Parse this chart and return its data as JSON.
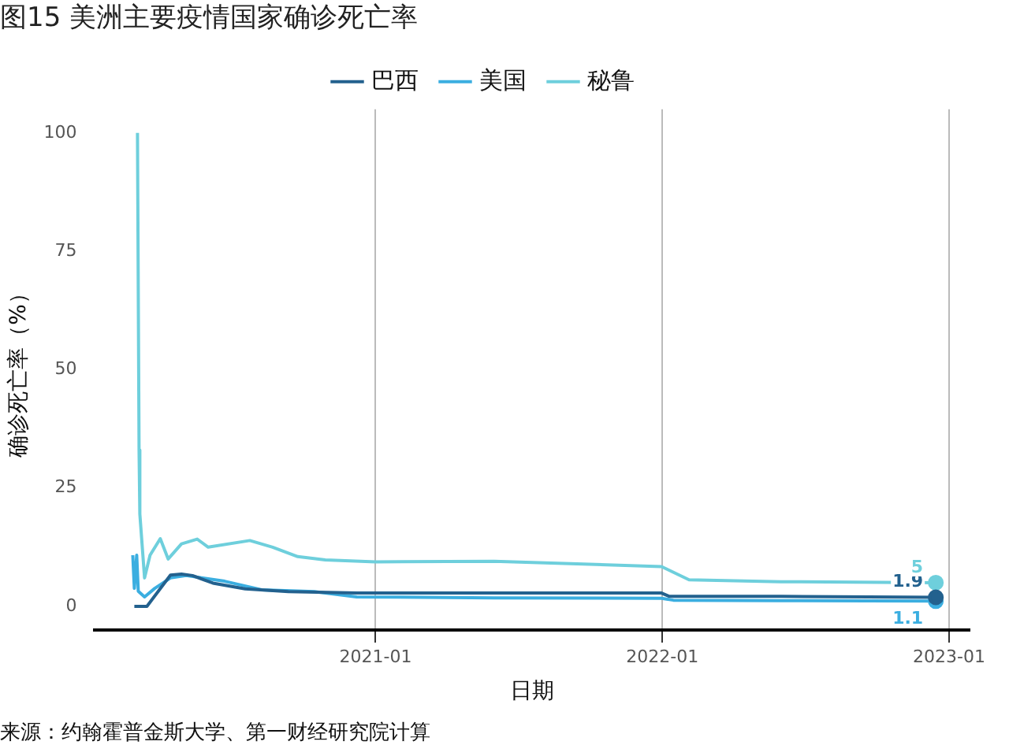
{
  "chart_data": {
    "type": "line",
    "title": "图15 美洲主要疫情国家确诊死亡率",
    "xlabel": "日期",
    "ylabel": "确诊死亡率（%）",
    "annotations": [
      "来源：约翰霍普金斯大学、第一财经研究院计算"
    ],
    "xlim": [
      "2020-01-09",
      "2023-01-27"
    ],
    "xticks": [
      "2021-01",
      "2022-01",
      "2023-01"
    ],
    "ylim": [
      -5,
      105
    ],
    "yticks": [
      0,
      25,
      50,
      75,
      100
    ],
    "grid": "x",
    "legend": "top",
    "series": [
      {
        "name": "巴西",
        "color": "#23618e",
        "x": [
          "2020-02-29",
          "2020-03-16",
          "2020-04-15",
          "2020-04-29",
          "2020-05-13",
          "2020-06-08",
          "2020-07-19",
          "2020-09-12",
          "2020-12-08",
          "2021-06-01",
          "2021-12-31",
          "2022-01-10",
          "2022-06-01",
          "2022-12-15"
        ],
        "values": [
          0,
          0,
          6.6,
          6.8,
          6.5,
          4.9,
          3.7,
          3.1,
          2.8,
          2.8,
          2.8,
          2.1,
          2.1,
          1.9
        ],
        "value_labels": [
          null,
          null,
          null,
          null,
          null,
          null,
          null,
          null,
          null,
          null,
          null,
          null,
          null,
          "1.9"
        ]
      },
      {
        "name": "美国",
        "color": "#3baee0",
        "x": [
          "2020-02-27",
          "2020-02-29",
          "2020-03-03",
          "2020-03-05",
          "2020-03-13",
          "2020-03-26",
          "2020-04-15",
          "2020-05-05",
          "2020-06-23",
          "2020-08-09",
          "2020-10-15",
          "2020-12-08",
          "2021-06-01",
          "2021-12-31",
          "2022-01-15",
          "2022-06-01",
          "2022-12-15"
        ],
        "values": [
          10.8,
          3.8,
          10.8,
          3.2,
          2,
          3.8,
          6,
          6.5,
          5.3,
          3.5,
          3.1,
          2,
          1.8,
          1.7,
          1.3,
          1.2,
          1.1
        ],
        "value_labels": [
          null,
          null,
          null,
          null,
          null,
          null,
          null,
          null,
          null,
          null,
          null,
          null,
          null,
          null,
          null,
          null,
          "1.1"
        ]
      },
      {
        "name": "秘鲁",
        "color": "#6ecfdc",
        "x": [
          "2020-03-04",
          "2020-03-06",
          "2020-03-07",
          "2020-03-13",
          "2020-03-20",
          "2020-04-02",
          "2020-04-12",
          "2020-04-29",
          "2020-05-19",
          "2020-06-02",
          "2020-07-25",
          "2020-08-23",
          "2020-09-24",
          "2020-10-29",
          "2021-01-01",
          "2021-06-01",
          "2021-12-31",
          "2022-02-04",
          "2022-06-01",
          "2022-12-15"
        ],
        "values": [
          100,
          33,
          19.5,
          6,
          10.8,
          14.3,
          10,
          13.2,
          14.2,
          12.5,
          13.9,
          12.5,
          10.5,
          9.8,
          9.4,
          9.5,
          8.4,
          5.6,
          5.2,
          5
        ],
        "value_labels": [
          null,
          null,
          null,
          null,
          null,
          null,
          null,
          null,
          null,
          null,
          null,
          null,
          null,
          null,
          null,
          null,
          null,
          null,
          null,
          "5"
        ]
      }
    ]
  }
}
